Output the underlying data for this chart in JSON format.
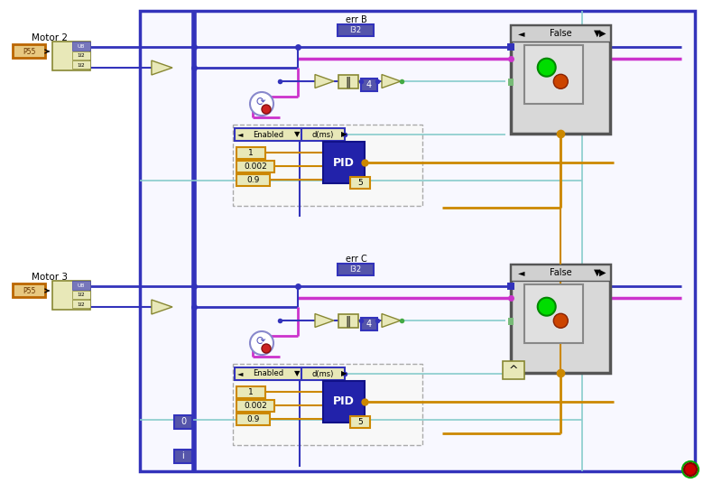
{
  "bg_color": "#ffffff",
  "outer_bg": "#f5f5ff",
  "wire_blue": "#3333bb",
  "wire_pink": "#cc33cc",
  "wire_orange": "#cc8800",
  "wire_green": "#44aa44",
  "wire_teal": "#88cccc",
  "node_fill": "#e8e8b8",
  "node_border": "#888833",
  "orange_box_fill": "#cc8800",
  "blue_header_fill": "#5555aa",
  "motor_fill": "#e8c880",
  "motor_border": "#bb6600",
  "case_fill": "#cccccc",
  "case_border": "#888888",
  "pid_fill": "#333388",
  "pid_border": "#111166",
  "motor2_label": "Motor 2",
  "motor3_label": "Motor 3",
  "err_b_label": "err B",
  "err_c_label": "err C",
  "false_label": "False",
  "enabled_label": "Enabled",
  "d_ms_label": "d(ms)",
  "pid_label": "PID",
  "val1": "1",
  "val2": "0.002",
  "val3": "0.9",
  "val4": "5",
  "val5": "4",
  "zero_label": "0",
  "i_label": "i",
  "i32_label": "I32"
}
